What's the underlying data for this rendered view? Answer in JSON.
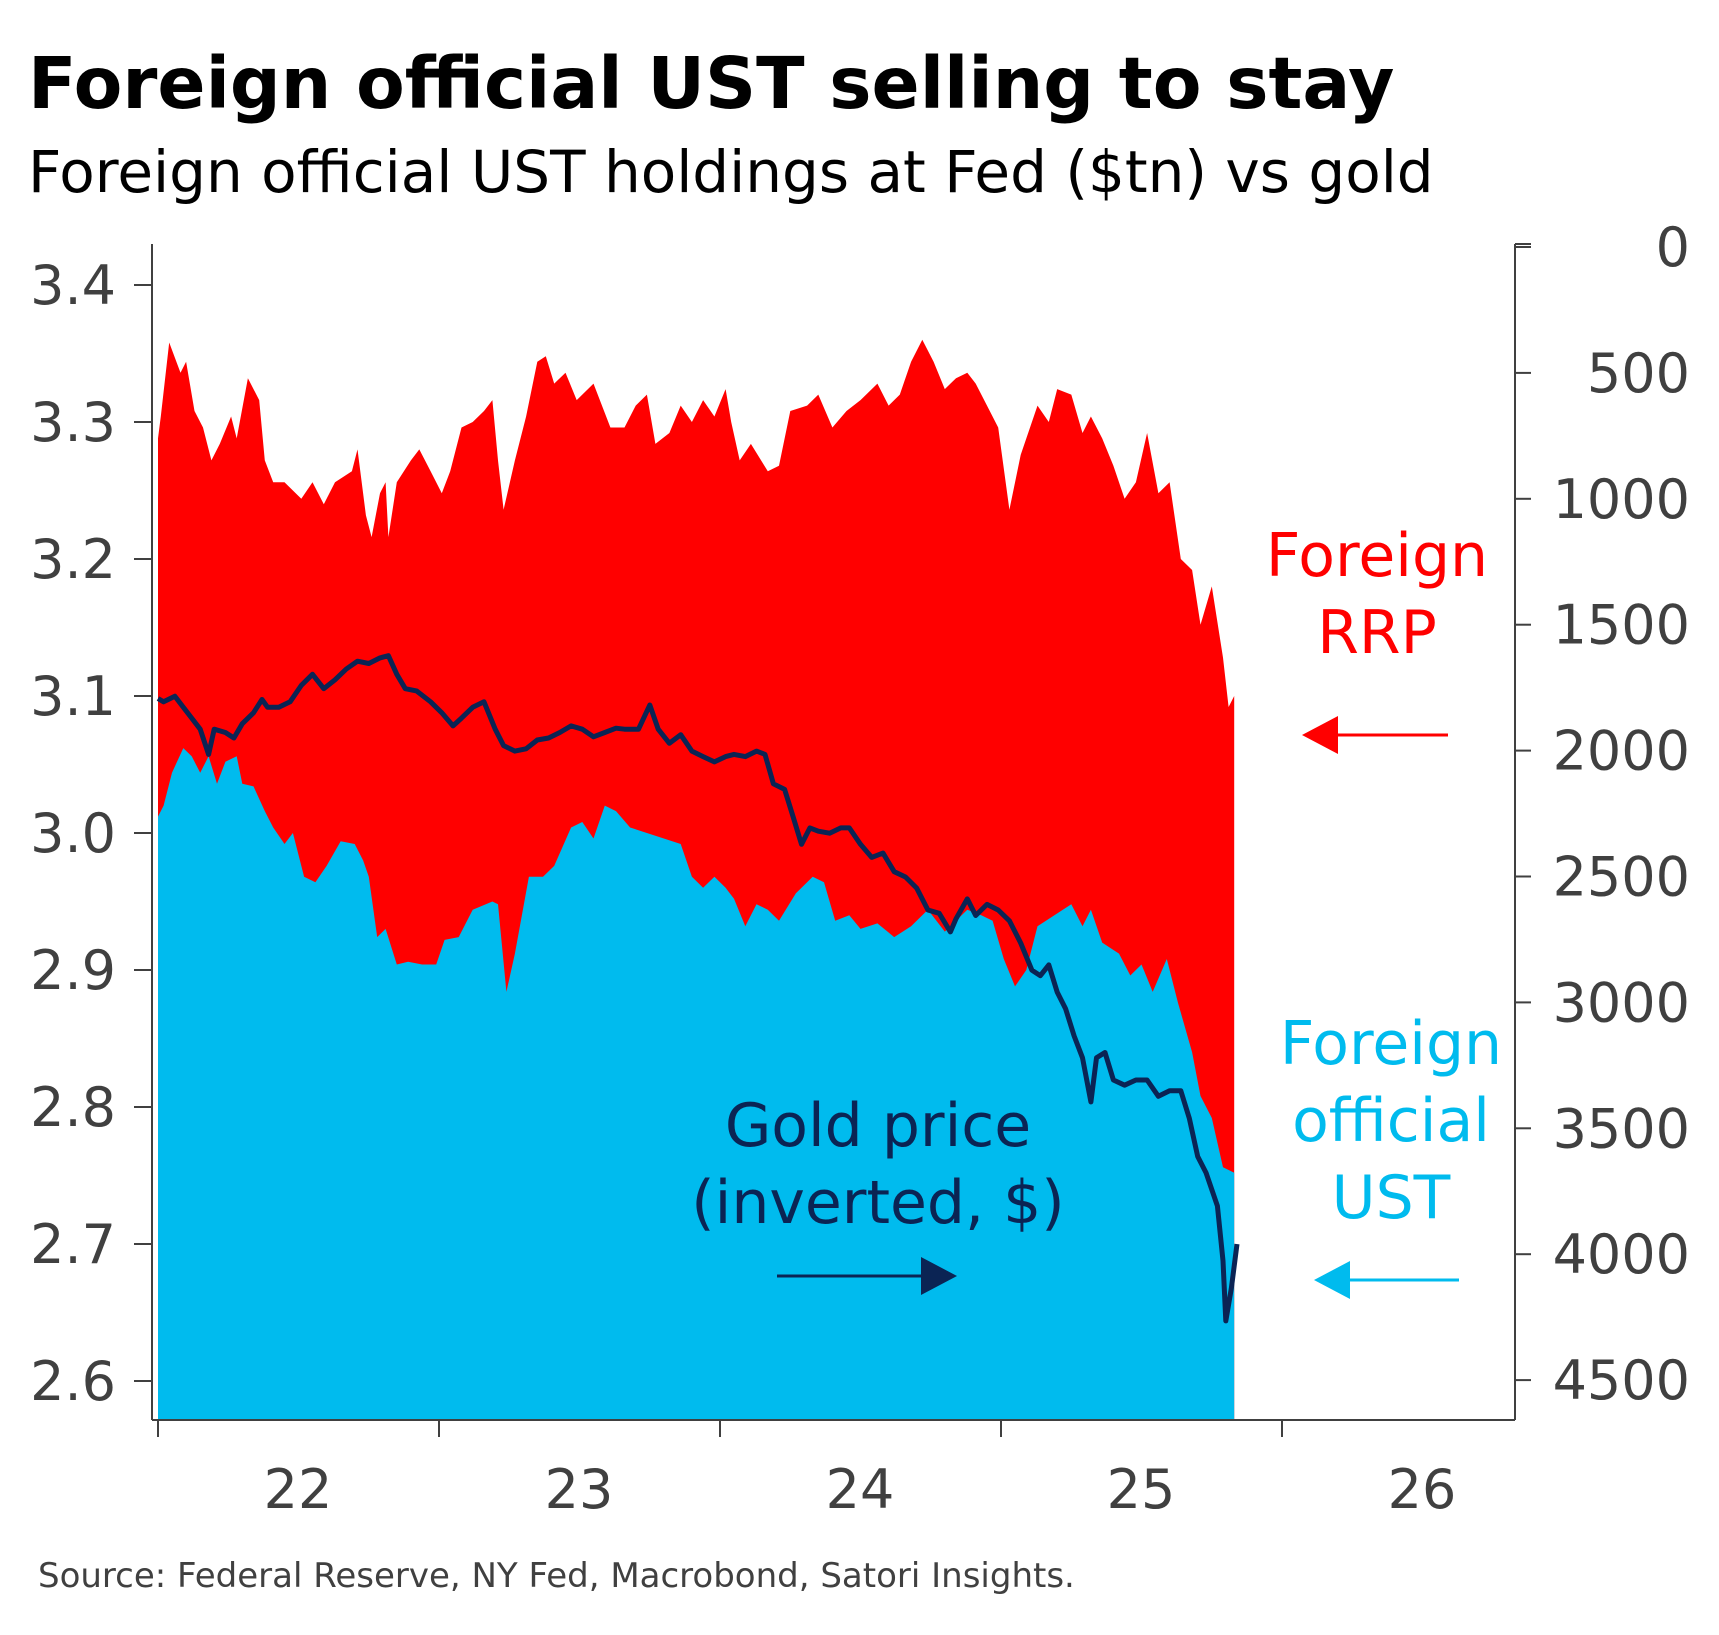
{
  "chart_data": {
    "type": "area",
    "title": "Foreign official UST selling to stay",
    "subtitle": "Foreign official UST holdings at Fed ($tn) vs gold",
    "source": "Source: Federal Reserve, NY Fed, Macrobond, Satori Insights.",
    "colors": {
      "rrp": "#ff0000",
      "ust": "#00bbee",
      "gold": "#0b2454",
      "text": "#404040"
    },
    "x_axis": {
      "ticks": [
        2022,
        2023,
        2024,
        2025,
        2026
      ],
      "labels": [
        "22",
        "23",
        "24",
        "25",
        "26"
      ],
      "range": [
        2022,
        2026.83
      ]
    },
    "y_left": {
      "range": [
        2.575,
        3.43
      ],
      "ticks": [
        3.4,
        3.3,
        3.2,
        3.1,
        3.0,
        2.9,
        2.8,
        2.7,
        2.6
      ],
      "labels": [
        "3.4",
        "3.3",
        "3.2",
        "3.1",
        "3.0",
        "2.9",
        "2.8",
        "2.7",
        "2.6"
      ],
      "unit": "$tn"
    },
    "y_right": {
      "inverted": true,
      "range": [
        0,
        4680
      ],
      "ticks": [
        0,
        500,
        1000,
        1500,
        2000,
        2500,
        3000,
        3500,
        4000,
        4500
      ],
      "labels": [
        "0",
        "500",
        "1000",
        "1500",
        "2000",
        "2500",
        "3000",
        "3500",
        "4000",
        "4500"
      ],
      "unit": "$"
    },
    "annotations": {
      "rrp": [
        "Foreign",
        "RRP"
      ],
      "ust": [
        "Foreign",
        "official",
        "UST"
      ],
      "gold": [
        "Gold price",
        "(inverted, $)"
      ]
    },
    "series": [
      {
        "name": "Foreign RRP (total incl. UST, $tn)",
        "axis": "left",
        "kind": "area",
        "x": [
          2022.0,
          2022.01,
          2022.04,
          2022.08,
          2022.1,
          2022.13,
          2022.16,
          2022.19,
          2022.22,
          2022.26,
          2022.28,
          2022.32,
          2022.36,
          2022.38,
          2022.41,
          2022.45,
          2022.51,
          2022.55,
          2022.59,
          2022.63,
          2022.69,
          2022.71,
          2022.74,
          2022.76,
          2022.79,
          2022.81,
          2022.82,
          2022.85,
          2022.9,
          2022.93,
          2022.97,
          2023.01,
          2023.04,
          2023.08,
          2023.12,
          2023.16,
          2023.19,
          2023.21,
          2023.23,
          2023.27,
          2023.31,
          2023.35,
          2023.38,
          2023.41,
          2023.45,
          2023.49,
          2023.55,
          2023.61,
          2023.66,
          2023.7,
          2023.74,
          2023.77,
          2023.82,
          2023.86,
          2023.9,
          2023.94,
          2023.98,
          2024.02,
          2024.04,
          2024.07,
          2024.11,
          2024.17,
          2024.21,
          2024.25,
          2024.31,
          2024.35,
          2024.4,
          2024.45,
          2024.5,
          2024.56,
          2024.6,
          2024.64,
          2024.68,
          2024.72,
          2024.76,
          2024.8,
          2024.84,
          2024.88,
          2024.91,
          2024.95,
          2024.99,
          2025.03,
          2025.07,
          2025.13,
          2025.17,
          2025.2,
          2025.25,
          2025.29,
          2025.32,
          2025.36,
          2025.4,
          2025.44,
          2025.48,
          2025.52,
          2025.56,
          2025.6,
          2025.64,
          2025.68,
          2025.71,
          2025.75,
          2025.79,
          2025.81,
          2025.83
        ],
        "values": [
          3.288,
          3.304,
          3.358,
          3.336,
          3.344,
          3.308,
          3.296,
          3.272,
          3.284,
          3.304,
          3.288,
          3.332,
          3.316,
          3.272,
          3.256,
          3.256,
          3.244,
          3.256,
          3.24,
          3.256,
          3.264,
          3.28,
          3.232,
          3.216,
          3.248,
          3.256,
          3.216,
          3.256,
          3.272,
          3.28,
          3.264,
          3.248,
          3.264,
          3.296,
          3.3,
          3.308,
          3.316,
          3.272,
          3.236,
          3.272,
          3.304,
          3.344,
          3.348,
          3.328,
          3.336,
          3.316,
          3.328,
          3.296,
          3.296,
          3.312,
          3.32,
          3.284,
          3.292,
          3.312,
          3.3,
          3.316,
          3.304,
          3.324,
          3.3,
          3.272,
          3.284,
          3.264,
          3.268,
          3.308,
          3.312,
          3.32,
          3.296,
          3.308,
          3.316,
          3.328,
          3.312,
          3.32,
          3.344,
          3.36,
          3.344,
          3.324,
          3.332,
          3.336,
          3.328,
          3.312,
          3.296,
          3.236,
          3.276,
          3.312,
          3.3,
          3.324,
          3.32,
          3.292,
          3.304,
          3.288,
          3.268,
          3.244,
          3.256,
          3.292,
          3.248,
          3.256,
          3.2,
          3.192,
          3.152,
          3.18,
          3.128,
          3.092,
          3.1
        ]
      },
      {
        "name": "Foreign official UST ($tn)",
        "axis": "left",
        "kind": "area",
        "x": [
          2022.0,
          2022.02,
          2022.05,
          2022.09,
          2022.12,
          2022.15,
          2022.18,
          2022.21,
          2022.24,
          2022.28,
          2022.3,
          2022.34,
          2022.38,
          2022.41,
          2022.45,
          2022.48,
          2022.52,
          2022.56,
          2022.6,
          2022.65,
          2022.7,
          2022.73,
          2022.75,
          2022.78,
          2022.81,
          2022.85,
          2022.89,
          2022.94,
          2022.99,
          2023.02,
          2023.07,
          2023.12,
          2023.19,
          2023.21,
          2023.24,
          2023.27,
          2023.32,
          2023.37,
          2023.41,
          2023.47,
          2023.51,
          2023.55,
          2023.59,
          2023.63,
          2023.68,
          2023.74,
          2023.8,
          2023.86,
          2023.9,
          2023.94,
          2023.98,
          2024.02,
          2024.05,
          2024.09,
          2024.13,
          2024.17,
          2024.21,
          2024.27,
          2024.33,
          2024.37,
          2024.41,
          2024.46,
          2024.5,
          2024.56,
          2024.62,
          2024.68,
          2024.74,
          2024.8,
          2024.88,
          2024.93,
          2024.97,
          2025.01,
          2025.05,
          2025.09,
          2025.13,
          2025.19,
          2025.25,
          2025.29,
          2025.32,
          2025.36,
          2025.42,
          2025.46,
          2025.5,
          2025.54,
          2025.59,
          2025.63,
          2025.68,
          2025.71,
          2025.75,
          2025.79,
          2025.83
        ],
        "values": [
          3.012,
          3.02,
          3.044,
          3.062,
          3.056,
          3.044,
          3.056,
          3.036,
          3.052,
          3.056,
          3.036,
          3.034,
          3.016,
          3.004,
          2.992,
          3.0,
          2.968,
          2.964,
          2.976,
          2.994,
          2.992,
          2.98,
          2.968,
          2.924,
          2.93,
          2.904,
          2.906,
          2.904,
          2.904,
          2.922,
          2.924,
          2.944,
          2.95,
          2.948,
          2.884,
          2.912,
          2.968,
          2.968,
          2.976,
          3.004,
          3.008,
          2.996,
          3.02,
          3.016,
          3.004,
          3.0,
          2.996,
          2.992,
          2.968,
          2.96,
          2.968,
          2.96,
          2.952,
          2.932,
          2.948,
          2.944,
          2.936,
          2.956,
          2.968,
          2.964,
          2.936,
          2.94,
          2.93,
          2.934,
          2.924,
          2.932,
          2.944,
          2.928,
          2.944,
          2.94,
          2.936,
          2.908,
          2.888,
          2.9,
          2.932,
          2.94,
          2.948,
          2.932,
          2.944,
          2.92,
          2.912,
          2.896,
          2.904,
          2.884,
          2.908,
          2.876,
          2.84,
          2.808,
          2.792,
          2.756,
          2.752
        ]
      },
      {
        "name": "Gold price (inverted, $)",
        "axis": "right",
        "kind": "line",
        "x": [
          2022.0,
          2022.02,
          2022.06,
          2022.09,
          2022.12,
          2022.15,
          2022.18,
          2022.2,
          2022.24,
          2022.27,
          2022.3,
          2022.34,
          2022.37,
          2022.39,
          2022.43,
          2022.47,
          2022.51,
          2022.55,
          2022.59,
          2022.63,
          2022.67,
          2022.71,
          2022.75,
          2022.79,
          2022.82,
          2022.85,
          2022.88,
          2022.92,
          2022.97,
          2023.01,
          2023.05,
          2023.08,
          2023.12,
          2023.16,
          2023.2,
          2023.23,
          2023.27,
          2023.31,
          2023.35,
          2023.39,
          2023.43,
          2023.47,
          2023.51,
          2023.55,
          2023.59,
          2023.63,
          2023.66,
          2023.71,
          2023.75,
          2023.78,
          2023.82,
          2023.86,
          2023.9,
          2023.94,
          2023.98,
          2024.02,
          2024.05,
          2024.09,
          2024.13,
          2024.16,
          2024.19,
          2024.23,
          2024.26,
          2024.29,
          2024.32,
          2024.35,
          2024.39,
          2024.43,
          2024.46,
          2024.5,
          2024.54,
          2024.58,
          2024.62,
          2024.66,
          2024.7,
          2024.74,
          2024.78,
          2024.82,
          2024.84,
          2024.88,
          2024.91,
          2024.95,
          2024.99,
          2025.03,
          2025.07,
          2025.11,
          2025.14,
          2025.17,
          2025.2,
          2025.23,
          2025.26,
          2025.29,
          2025.32,
          2025.34,
          2025.37,
          2025.4,
          2025.44,
          2025.48,
          2025.52,
          2025.56,
          2025.6,
          2025.64,
          2025.67,
          2025.7,
          2025.73,
          2025.77,
          2025.79,
          2025.8,
          2025.82,
          2025.84
        ],
        "values": [
          1793,
          1806,
          1784,
          1828,
          1871,
          1915,
          2015,
          1915,
          1928,
          1950,
          1893,
          1850,
          1797,
          1828,
          1828,
          1806,
          1741,
          1697,
          1754,
          1719,
          1676,
          1645,
          1654,
          1632,
          1623,
          1697,
          1754,
          1763,
          1806,
          1850,
          1902,
          1871,
          1828,
          1806,
          1915,
          1980,
          2002,
          1993,
          1958,
          1950,
          1928,
          1902,
          1915,
          1945,
          1928,
          1911,
          1915,
          1915,
          1819,
          1915,
          1971,
          1937,
          2002,
          2024,
          2045,
          2024,
          2015,
          2024,
          2002,
          2015,
          2132,
          2154,
          2263,
          2372,
          2307,
          2320,
          2328,
          2307,
          2307,
          2372,
          2424,
          2407,
          2481,
          2502,
          2546,
          2633,
          2646,
          2720,
          2668,
          2589,
          2655,
          2611,
          2633,
          2676,
          2764,
          2872,
          2894,
          2851,
          2959,
          3025,
          3133,
          3220,
          3395,
          3220,
          3199,
          3308,
          3329,
          3308,
          3308,
          3373,
          3351,
          3351,
          3460,
          3612,
          3677,
          3808,
          4026,
          4265,
          4134,
          3960
        ]
      }
    ]
  }
}
